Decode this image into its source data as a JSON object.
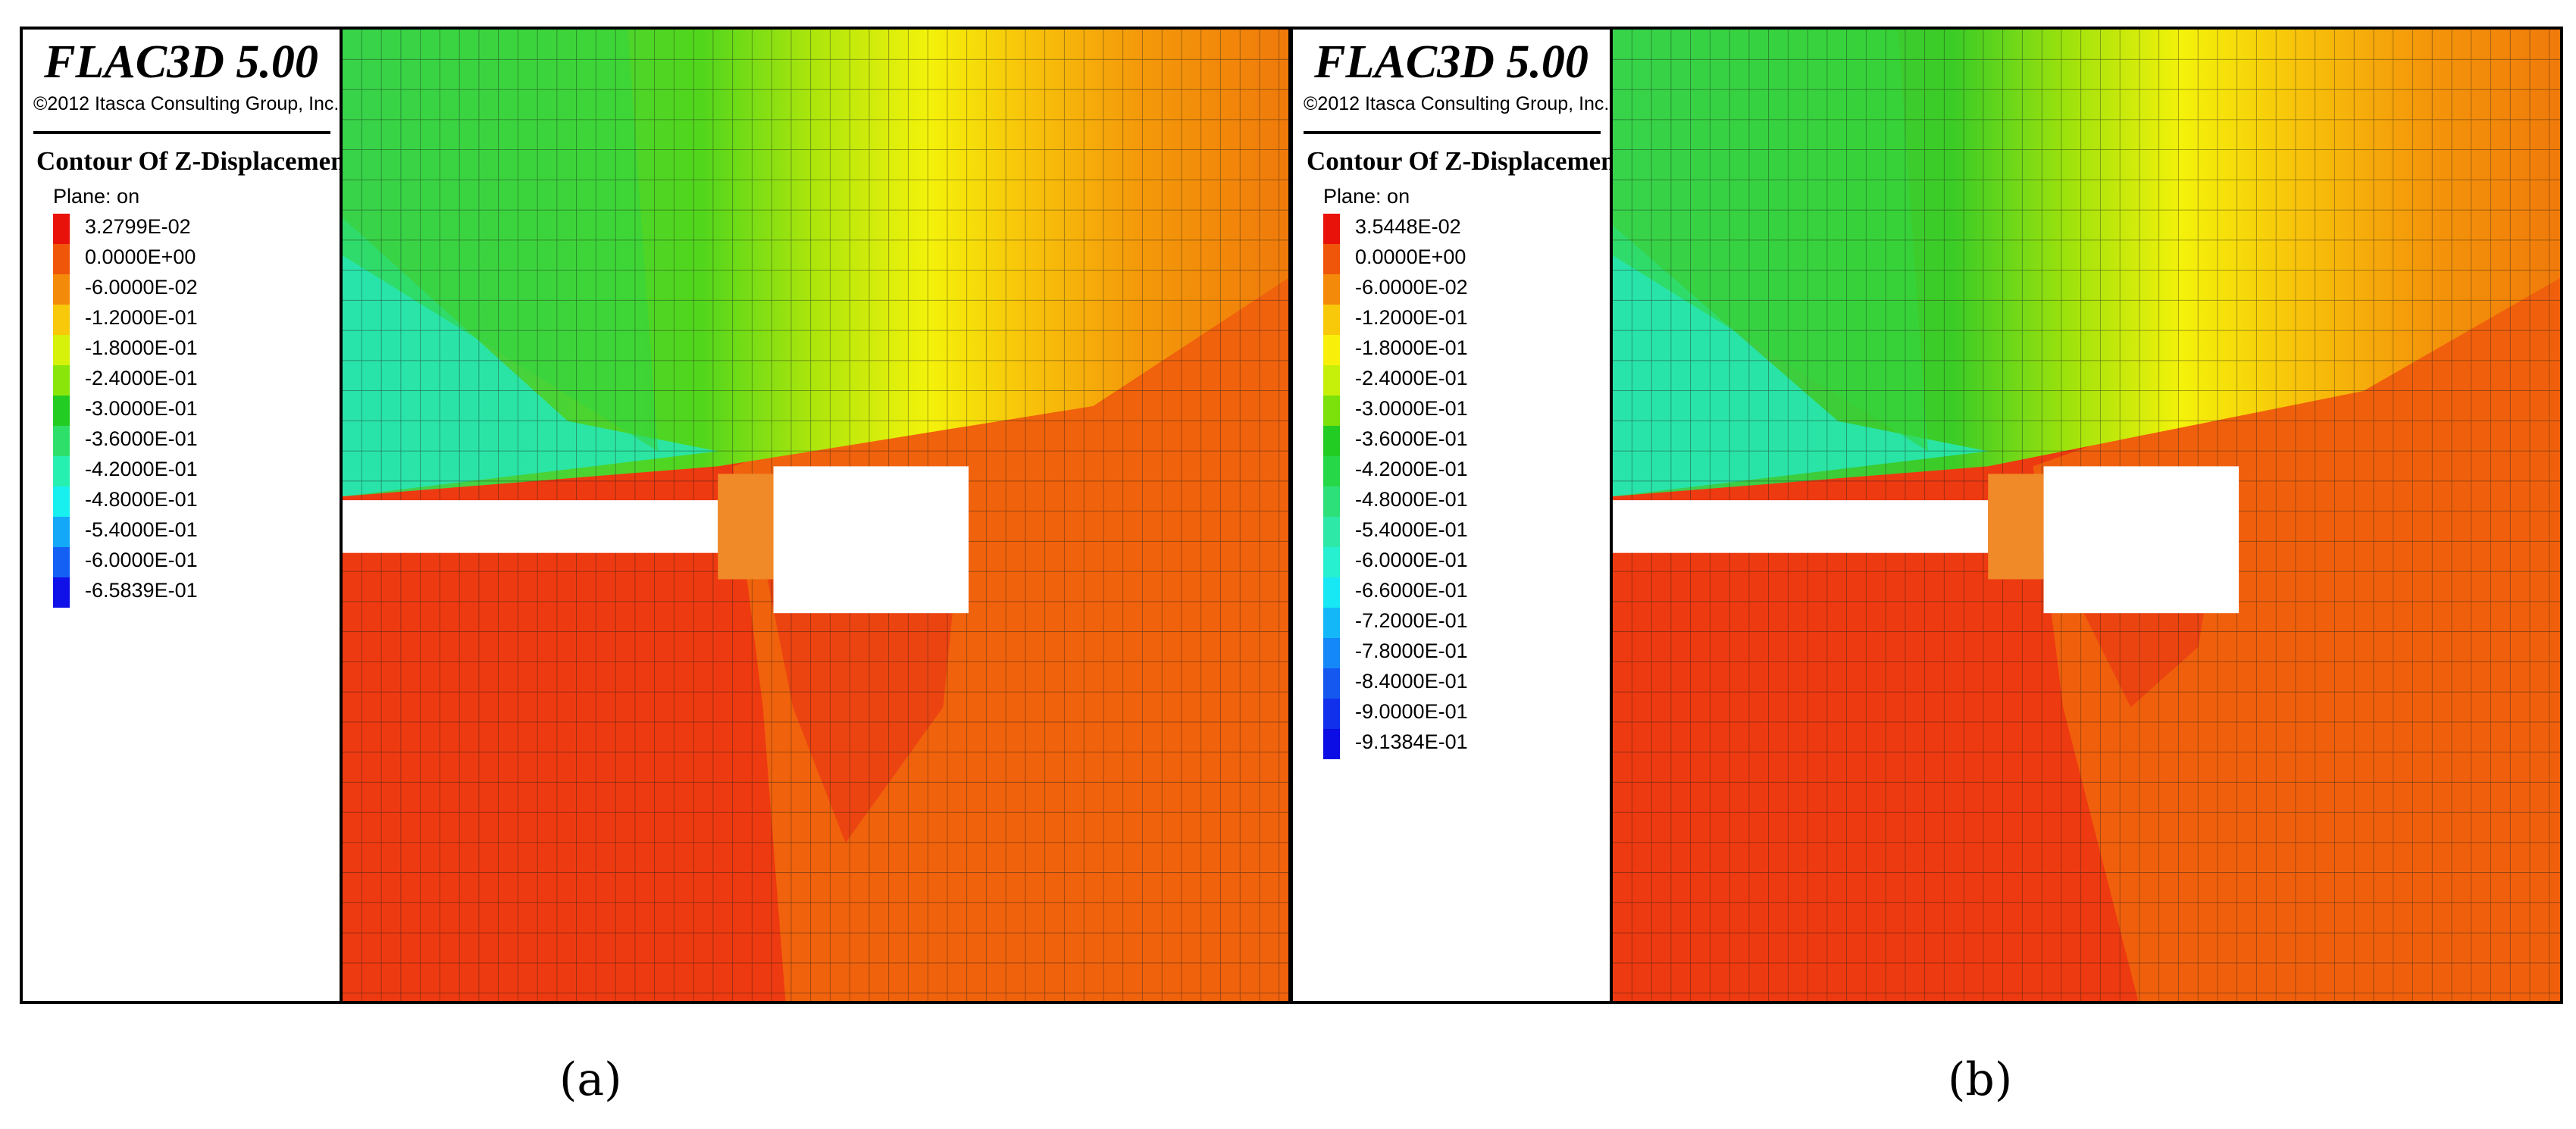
{
  "panels": [
    {
      "id": "a",
      "brand": "FLAC3D 5.00",
      "copyright": "©2012 Itasca Consulting Group, Inc.",
      "legend_title": "Contour Of Z-Displacement",
      "plane": "Plane: on",
      "levels": [
        "3.2799E-02",
        "0.0000E+00",
        "-6.0000E-02",
        "-1.2000E-01",
        "-1.8000E-01",
        "-2.4000E-01",
        "-3.0000E-01",
        "-3.6000E-01",
        "-4.2000E-01",
        "-4.8000E-01",
        "-5.4000E-01",
        "-6.0000E-01",
        "-6.5839E-01"
      ],
      "colors": [
        "#e8120a",
        "#f0560a",
        "#f48a0a",
        "#f8c80a",
        "#d6f20a",
        "#8ae60a",
        "#22cc22",
        "#2ee06a",
        "#26f0b0",
        "#18f0f0",
        "#14a8f8",
        "#1460f4",
        "#1010e8"
      ],
      "caption": "(a)"
    },
    {
      "id": "b",
      "brand": "FLAC3D 5.00",
      "copyright": "©2012 Itasca Consulting Group, Inc.",
      "legend_title": "Contour Of Z-Displacement",
      "plane": "Plane: on",
      "levels": [
        "3.5448E-02",
        "0.0000E+00",
        "-6.0000E-02",
        "-1.2000E-01",
        "-1.8000E-01",
        "-2.4000E-01",
        "-3.0000E-01",
        "-3.6000E-01",
        "-4.2000E-01",
        "-4.8000E-01",
        "-5.4000E-01",
        "-6.0000E-01",
        "-6.6000E-01",
        "-7.2000E-01",
        "-7.8000E-01",
        "-8.4000E-01",
        "-9.0000E-01",
        "-9.1384E-01"
      ],
      "colors": [
        "#e8120a",
        "#f0560a",
        "#f48a0a",
        "#f8c80a",
        "#f8f00a",
        "#c6f00a",
        "#7ce00a",
        "#22cc22",
        "#26d848",
        "#2ee07a",
        "#2ee8a8",
        "#26f0d0",
        "#18e8f4",
        "#14b8f8",
        "#1488f8",
        "#1458f0",
        "#1030ec",
        "#0c0ce4"
      ],
      "caption": "(b)"
    }
  ]
}
